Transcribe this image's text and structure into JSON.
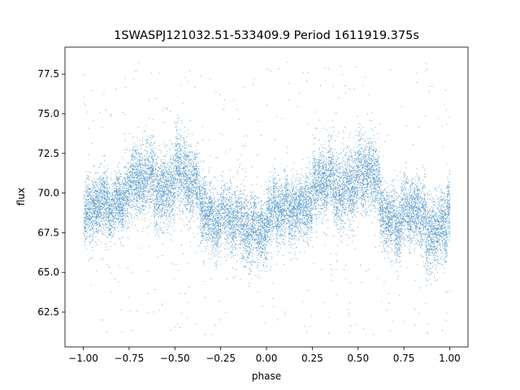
{
  "chart_data": {
    "type": "scatter",
    "title": "1SWASPJ121032.51-533409.9 Period 1611919.375s",
    "xlabel": "phase",
    "ylabel": "flux",
    "xlim": [
      -1.1,
      1.1
    ],
    "ylim": [
      60.3,
      79.2
    ],
    "x_ticks": [
      "−1.00",
      "−0.75",
      "−0.50",
      "−0.25",
      "0.00",
      "0.25",
      "0.50",
      "0.75",
      "1.00"
    ],
    "x_tick_values": [
      -1.0,
      -0.75,
      -0.5,
      -0.25,
      0.0,
      0.25,
      0.5,
      0.75,
      1.0
    ],
    "y_ticks": [
      "62.5",
      "65.0",
      "67.5",
      "70.0",
      "72.5",
      "75.0",
      "77.5"
    ],
    "y_tick_values": [
      62.5,
      65.0,
      67.5,
      70.0,
      72.5,
      75.0,
      77.5
    ],
    "grid": false,
    "point_color": "#1f77b4",
    "series": [
      {
        "phase_range": [
          -1.0,
          1.0
        ],
        "approx_point_count": 16000,
        "profile_phase": [
          0.0,
          0.05,
          0.1,
          0.15,
          0.2,
          0.25,
          0.3,
          0.35,
          0.4,
          0.45,
          0.5,
          0.55,
          0.6,
          0.65,
          0.7,
          0.75,
          0.8,
          0.85,
          0.9,
          0.95,
          1.0
        ],
        "profile_median_flux": [
          68.3,
          68.6,
          69.0,
          69.5,
          69.9,
          70.1,
          70.3,
          70.6,
          70.8,
          71.0,
          71.0,
          70.6,
          70.0,
          69.3,
          68.7,
          68.4,
          68.2,
          68.1,
          68.1,
          68.2,
          68.3
        ],
        "profile_spread": [
          1.3,
          1.2,
          1.2,
          1.2,
          1.2,
          1.3,
          1.3,
          1.4,
          1.5,
          1.5,
          1.5,
          1.5,
          1.4,
          1.3,
          1.3,
          1.3,
          1.3,
          1.4,
          1.4,
          1.3,
          1.3
        ]
      }
    ]
  }
}
